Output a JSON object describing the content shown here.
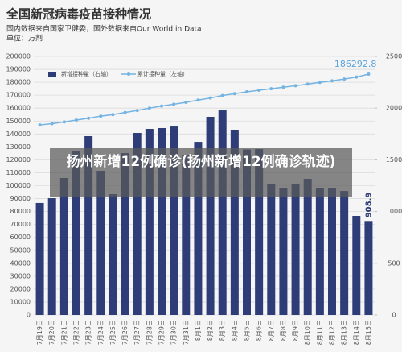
{
  "chart_data": {
    "type": "combo",
    "title": "全国新冠病毒疫苗接种情况",
    "subtitle": [
      "国内数据来自国家卫健委，国外数据来自Our World in Data",
      "单位：万剂"
    ],
    "categories": [
      "7月19日",
      "7月20日",
      "7月21日",
      "7月22日",
      "7月23日",
      "7月24日",
      "7月25日",
      "7月26日",
      "7月27日",
      "7月28日",
      "7月29日",
      "7月30日",
      "7月31日",
      "8月1日",
      "8月2日",
      "8月3日",
      "8月4日",
      "8月5日",
      "8月6日",
      "8月7日",
      "8月8日",
      "8月9日",
      "8月10日",
      "8月11日",
      "8月12日",
      "8月13日",
      "8月14日",
      "8月15日"
    ],
    "series": [
      {
        "name": "新增接种量（右轴）",
        "type": "bar",
        "axis": "y2",
        "color": "#2e3d78",
        "values": [
          1083,
          1129,
          1324,
          1581,
          1729,
          1394,
          1168,
          1565,
          1760,
          1799,
          1807,
          1822,
          1550,
          1674,
          1916,
          1978,
          1791,
          1600,
          1604,
          1262,
          1230,
          1262,
          1316,
          1223,
          1230,
          1199,
          958,
          908.9
        ]
      },
      {
        "name": "累计接种量（左轴）",
        "type": "line",
        "axis": "y",
        "color": "#74b3e2",
        "values": [
          147000,
          148000,
          149300,
          150800,
          152200,
          153800,
          155000,
          156600,
          158200,
          160000,
          161600,
          163000,
          164500,
          166200,
          167800,
          169700,
          171200,
          172600,
          173800,
          175000,
          176200,
          177300,
          178600,
          179900,
          181100,
          182500,
          184000,
          186292.8
        ]
      }
    ],
    "ylim": [
      0,
      200000
    ],
    "yticks": [
      0,
      10000,
      20000,
      30000,
      40000,
      50000,
      60000,
      70000,
      80000,
      90000,
      100000,
      110000,
      120000,
      130000,
      140000,
      150000,
      160000,
      170000,
      180000,
      190000,
      200000
    ],
    "y2lim": [
      0,
      2500
    ],
    "y2ticks": [
      0,
      500,
      1000,
      1500,
      2000,
      2500
    ],
    "grid": true
  },
  "overlay_caption": "扬州新增12例确诊(扬州新增12例确诊轨迹)"
}
